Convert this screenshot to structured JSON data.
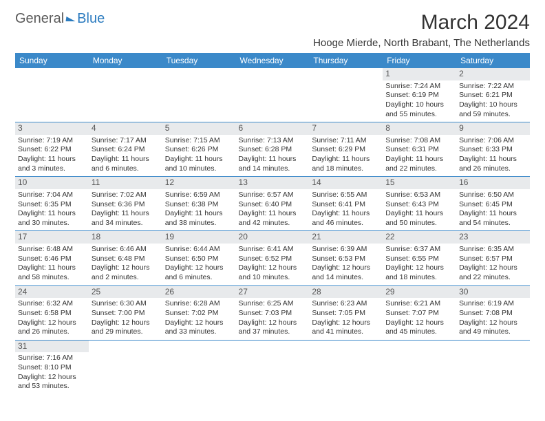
{
  "logo": {
    "part1": "General",
    "part2": "Blue"
  },
  "title": "March 2024",
  "location": "Hooge Mierde, North Brabant, The Netherlands",
  "colors": {
    "header_bg": "#3b89c9",
    "header_text": "#ffffff",
    "daynum_bg": "#e8eaec",
    "text": "#333333",
    "border": "#3b89c9"
  },
  "dayHeaders": [
    "Sunday",
    "Monday",
    "Tuesday",
    "Wednesday",
    "Thursday",
    "Friday",
    "Saturday"
  ],
  "weeks": [
    [
      null,
      null,
      null,
      null,
      null,
      {
        "n": "1",
        "sr": "Sunrise: 7:24 AM",
        "ss": "Sunset: 6:19 PM",
        "dl": "Daylight: 10 hours and 55 minutes."
      },
      {
        "n": "2",
        "sr": "Sunrise: 7:22 AM",
        "ss": "Sunset: 6:21 PM",
        "dl": "Daylight: 10 hours and 59 minutes."
      }
    ],
    [
      {
        "n": "3",
        "sr": "Sunrise: 7:19 AM",
        "ss": "Sunset: 6:22 PM",
        "dl": "Daylight: 11 hours and 3 minutes."
      },
      {
        "n": "4",
        "sr": "Sunrise: 7:17 AM",
        "ss": "Sunset: 6:24 PM",
        "dl": "Daylight: 11 hours and 6 minutes."
      },
      {
        "n": "5",
        "sr": "Sunrise: 7:15 AM",
        "ss": "Sunset: 6:26 PM",
        "dl": "Daylight: 11 hours and 10 minutes."
      },
      {
        "n": "6",
        "sr": "Sunrise: 7:13 AM",
        "ss": "Sunset: 6:28 PM",
        "dl": "Daylight: 11 hours and 14 minutes."
      },
      {
        "n": "7",
        "sr": "Sunrise: 7:11 AM",
        "ss": "Sunset: 6:29 PM",
        "dl": "Daylight: 11 hours and 18 minutes."
      },
      {
        "n": "8",
        "sr": "Sunrise: 7:08 AM",
        "ss": "Sunset: 6:31 PM",
        "dl": "Daylight: 11 hours and 22 minutes."
      },
      {
        "n": "9",
        "sr": "Sunrise: 7:06 AM",
        "ss": "Sunset: 6:33 PM",
        "dl": "Daylight: 11 hours and 26 minutes."
      }
    ],
    [
      {
        "n": "10",
        "sr": "Sunrise: 7:04 AM",
        "ss": "Sunset: 6:35 PM",
        "dl": "Daylight: 11 hours and 30 minutes."
      },
      {
        "n": "11",
        "sr": "Sunrise: 7:02 AM",
        "ss": "Sunset: 6:36 PM",
        "dl": "Daylight: 11 hours and 34 minutes."
      },
      {
        "n": "12",
        "sr": "Sunrise: 6:59 AM",
        "ss": "Sunset: 6:38 PM",
        "dl": "Daylight: 11 hours and 38 minutes."
      },
      {
        "n": "13",
        "sr": "Sunrise: 6:57 AM",
        "ss": "Sunset: 6:40 PM",
        "dl": "Daylight: 11 hours and 42 minutes."
      },
      {
        "n": "14",
        "sr": "Sunrise: 6:55 AM",
        "ss": "Sunset: 6:41 PM",
        "dl": "Daylight: 11 hours and 46 minutes."
      },
      {
        "n": "15",
        "sr": "Sunrise: 6:53 AM",
        "ss": "Sunset: 6:43 PM",
        "dl": "Daylight: 11 hours and 50 minutes."
      },
      {
        "n": "16",
        "sr": "Sunrise: 6:50 AM",
        "ss": "Sunset: 6:45 PM",
        "dl": "Daylight: 11 hours and 54 minutes."
      }
    ],
    [
      {
        "n": "17",
        "sr": "Sunrise: 6:48 AM",
        "ss": "Sunset: 6:46 PM",
        "dl": "Daylight: 11 hours and 58 minutes."
      },
      {
        "n": "18",
        "sr": "Sunrise: 6:46 AM",
        "ss": "Sunset: 6:48 PM",
        "dl": "Daylight: 12 hours and 2 minutes."
      },
      {
        "n": "19",
        "sr": "Sunrise: 6:44 AM",
        "ss": "Sunset: 6:50 PM",
        "dl": "Daylight: 12 hours and 6 minutes."
      },
      {
        "n": "20",
        "sr": "Sunrise: 6:41 AM",
        "ss": "Sunset: 6:52 PM",
        "dl": "Daylight: 12 hours and 10 minutes."
      },
      {
        "n": "21",
        "sr": "Sunrise: 6:39 AM",
        "ss": "Sunset: 6:53 PM",
        "dl": "Daylight: 12 hours and 14 minutes."
      },
      {
        "n": "22",
        "sr": "Sunrise: 6:37 AM",
        "ss": "Sunset: 6:55 PM",
        "dl": "Daylight: 12 hours and 18 minutes."
      },
      {
        "n": "23",
        "sr": "Sunrise: 6:35 AM",
        "ss": "Sunset: 6:57 PM",
        "dl": "Daylight: 12 hours and 22 minutes."
      }
    ],
    [
      {
        "n": "24",
        "sr": "Sunrise: 6:32 AM",
        "ss": "Sunset: 6:58 PM",
        "dl": "Daylight: 12 hours and 26 minutes."
      },
      {
        "n": "25",
        "sr": "Sunrise: 6:30 AM",
        "ss": "Sunset: 7:00 PM",
        "dl": "Daylight: 12 hours and 29 minutes."
      },
      {
        "n": "26",
        "sr": "Sunrise: 6:28 AM",
        "ss": "Sunset: 7:02 PM",
        "dl": "Daylight: 12 hours and 33 minutes."
      },
      {
        "n": "27",
        "sr": "Sunrise: 6:25 AM",
        "ss": "Sunset: 7:03 PM",
        "dl": "Daylight: 12 hours and 37 minutes."
      },
      {
        "n": "28",
        "sr": "Sunrise: 6:23 AM",
        "ss": "Sunset: 7:05 PM",
        "dl": "Daylight: 12 hours and 41 minutes."
      },
      {
        "n": "29",
        "sr": "Sunrise: 6:21 AM",
        "ss": "Sunset: 7:07 PM",
        "dl": "Daylight: 12 hours and 45 minutes."
      },
      {
        "n": "30",
        "sr": "Sunrise: 6:19 AM",
        "ss": "Sunset: 7:08 PM",
        "dl": "Daylight: 12 hours and 49 minutes."
      }
    ],
    [
      {
        "n": "31",
        "sr": "Sunrise: 7:16 AM",
        "ss": "Sunset: 8:10 PM",
        "dl": "Daylight: 12 hours and 53 minutes."
      },
      null,
      null,
      null,
      null,
      null,
      null
    ]
  ]
}
